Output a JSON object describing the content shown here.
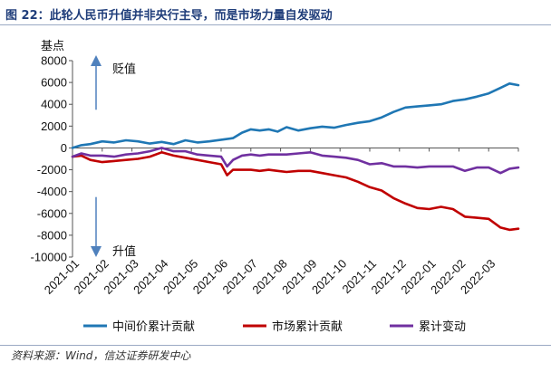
{
  "header": {
    "figure_label": "图 22：",
    "title_text": "此轮人民币升值并非央行主导，而是市场力量自发驱动"
  },
  "source": "资料来源：Wind，信达证券研发中心",
  "colors": {
    "total": "#1f77b4",
    "market": "#c00000",
    "change": "#7030a0",
    "arrow": "#4f81bd"
  },
  "chart_data": {
    "type": "line",
    "title": "此轮人民币升值并非央行主导，而是市场力量自发驱动",
    "ylabel": "基点",
    "ylim": [
      -10000,
      8000
    ],
    "yticks": [
      -10000,
      -8000,
      -6000,
      -4000,
      -2000,
      0,
      2000,
      4000,
      6000,
      8000
    ],
    "ytick_labels": [
      "-10000",
      "-8000",
      "-6000",
      "-4000",
      "-2000",
      "0",
      "2000",
      "4000",
      "6000",
      "8000"
    ],
    "xlim": [
      0,
      15
    ],
    "xtick_labels": [
      "2021-01",
      "2021-02",
      "2021-03",
      "2021-04",
      "2021-05",
      "2021-06",
      "2021-07",
      "2021-08",
      "2021-09",
      "2021-10",
      "2021-11",
      "2021-12",
      "2022-01",
      "2022-02",
      "2022-03"
    ],
    "annotations": {
      "up": "贬值",
      "down": "升值"
    },
    "series": [
      {
        "name": "中间价累计贡献",
        "color": "#1f77b4",
        "x": [
          0,
          0.3,
          0.6,
          1.0,
          1.4,
          1.8,
          2.2,
          2.6,
          3.0,
          3.4,
          3.8,
          4.2,
          4.6,
          5.0,
          5.4,
          5.7,
          6.0,
          6.3,
          6.6,
          6.9,
          7.2,
          7.6,
          8.0,
          8.4,
          8.8,
          9.2,
          9.6,
          10.0,
          10.4,
          10.8,
          11.2,
          11.6,
          12.0,
          12.4,
          12.8,
          13.2,
          13.6,
          14.0,
          14.4,
          14.7,
          15.0
        ],
        "values": [
          0,
          250,
          350,
          600,
          500,
          700,
          600,
          400,
          550,
          350,
          700,
          500,
          600,
          750,
          900,
          1400,
          1700,
          1600,
          1700,
          1500,
          1900,
          1600,
          1800,
          1950,
          1850,
          2100,
          2300,
          2450,
          2800,
          3300,
          3700,
          3800,
          3900,
          4000,
          4300,
          4450,
          4700,
          5000,
          5500,
          5900,
          5750
        ]
      },
      {
        "name": "市场累计贡献",
        "color": "#c00000",
        "x": [
          0,
          0.3,
          0.6,
          1.0,
          1.4,
          1.8,
          2.2,
          2.6,
          3.0,
          3.4,
          3.8,
          4.2,
          4.6,
          5.0,
          5.2,
          5.4,
          5.7,
          6.0,
          6.3,
          6.6,
          6.9,
          7.2,
          7.6,
          8.0,
          8.4,
          8.8,
          9.2,
          9.6,
          10.0,
          10.4,
          10.8,
          11.2,
          11.6,
          12.0,
          12.4,
          12.8,
          13.2,
          13.6,
          14.0,
          14.4,
          14.7,
          15.0
        ],
        "values": [
          -800,
          -700,
          -1100,
          -1300,
          -1200,
          -1100,
          -1000,
          -800,
          -400,
          -700,
          -900,
          -1100,
          -1300,
          -1500,
          -2500,
          -2000,
          -2000,
          -2000,
          -2100,
          -2000,
          -2100,
          -2200,
          -2100,
          -2100,
          -2300,
          -2500,
          -2700,
          -3100,
          -3600,
          -3900,
          -4600,
          -5100,
          -5500,
          -5600,
          -5400,
          -5600,
          -6300,
          -6400,
          -6500,
          -7300,
          -7500,
          -7400
        ]
      },
      {
        "name": "累计变动",
        "color": "#7030a0",
        "x": [
          0,
          0.3,
          0.6,
          1.0,
          1.4,
          1.8,
          2.2,
          2.6,
          3.0,
          3.4,
          3.8,
          4.2,
          4.6,
          5.0,
          5.2,
          5.4,
          5.7,
          6.0,
          6.3,
          6.6,
          6.9,
          7.2,
          7.6,
          8.0,
          8.4,
          8.8,
          9.2,
          9.6,
          10.0,
          10.4,
          10.8,
          11.2,
          11.6,
          12.0,
          12.4,
          12.8,
          13.2,
          13.6,
          14.0,
          14.4,
          14.7,
          15.0
        ],
        "values": [
          -800,
          -500,
          -700,
          -700,
          -800,
          -600,
          -500,
          -300,
          0,
          -300,
          -300,
          -600,
          -700,
          -800,
          -1700,
          -1100,
          -700,
          -600,
          -700,
          -600,
          -600,
          -600,
          -500,
          -400,
          -700,
          -800,
          -900,
          -1100,
          -1500,
          -1400,
          -1700,
          -1700,
          -1800,
          -1700,
          -1700,
          -1700,
          -2100,
          -1800,
          -1800,
          -2300,
          -1900,
          -1800
        ]
      }
    ]
  }
}
